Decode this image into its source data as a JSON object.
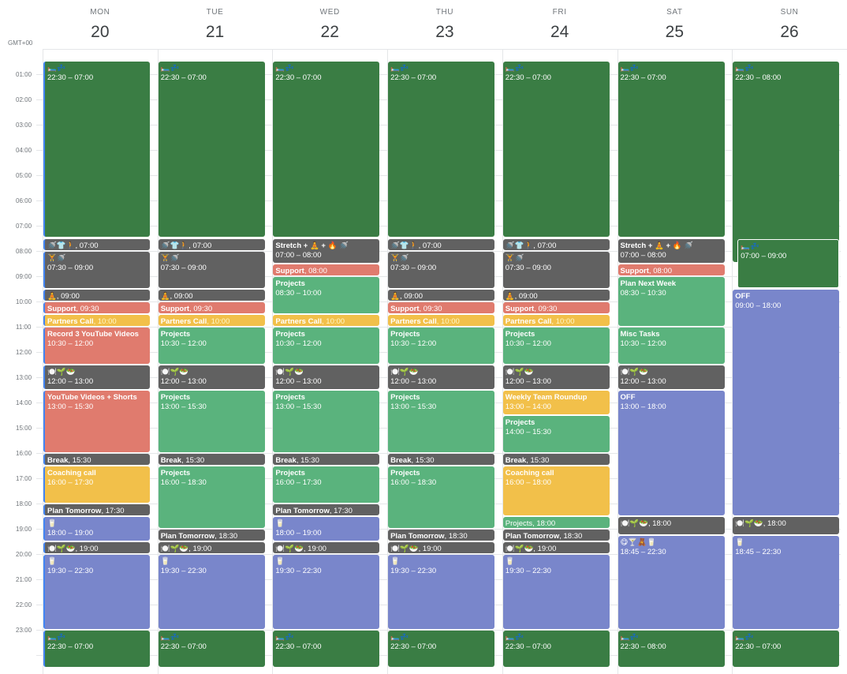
{
  "timezone": "GMT+00",
  "colors": {
    "sleep": "#3a7d44",
    "graphite": "#616161",
    "flamingo": "#e07b6e",
    "banana": "#f2c04a",
    "sage": "#5ab37d",
    "lavender": "#7986cb"
  },
  "days": [
    {
      "dow": "MON",
      "num": "20"
    },
    {
      "dow": "TUE",
      "num": "21"
    },
    {
      "dow": "WED",
      "num": "22"
    },
    {
      "dow": "THU",
      "num": "23"
    },
    {
      "dow": "FRI",
      "num": "24"
    },
    {
      "dow": "SAT",
      "num": "25"
    },
    {
      "dow": "SUN",
      "num": "26"
    }
  ],
  "hours": [
    "01:00",
    "02:00",
    "03:00",
    "04:00",
    "05:00",
    "06:00",
    "07:00",
    "08:00",
    "09:00",
    "10:00",
    "11:00",
    "12:00",
    "13:00",
    "14:00",
    "15:00",
    "16:00",
    "17:00",
    "18:00",
    "19:00",
    "20:00",
    "21:00",
    "22:00",
    "23:00"
  ],
  "events": [
    {
      "day": 0,
      "start": 0,
      "end": 7,
      "color": "sleep",
      "title": "🛏️💤",
      "time": "22:30 – 07:00",
      "two": true
    },
    {
      "day": 0,
      "start": 7,
      "end": 7.5,
      "color": "graphite",
      "title": "🚿👕🚶",
      "time": ", 07:00"
    },
    {
      "day": 0,
      "start": 7.5,
      "end": 9,
      "color": "graphite",
      "title": "🏋️🚿",
      "time": "07:30 – 09:00",
      "two": true
    },
    {
      "day": 0,
      "start": 9,
      "end": 9.5,
      "color": "graphite",
      "title": "🧘",
      "time": ", 09:00"
    },
    {
      "day": 0,
      "start": 9.5,
      "end": 10,
      "color": "flamingo",
      "title": "Support",
      "time": ", 09:30"
    },
    {
      "day": 0,
      "start": 10,
      "end": 10.5,
      "color": "banana",
      "title": "Partners Call",
      "time": ", 10:00",
      "hl": true
    },
    {
      "day": 0,
      "start": 10.5,
      "end": 12,
      "color": "flamingo",
      "title": "Record 3 YouTube Videos",
      "time": "10:30 – 12:00",
      "two": true
    },
    {
      "day": 0,
      "start": 12,
      "end": 13,
      "color": "graphite",
      "title": "🍽️🌱🥗",
      "time": "12:00 – 13:00",
      "two": true
    },
    {
      "day": 0,
      "start": 13,
      "end": 15.5,
      "color": "flamingo",
      "title": "YouTube Videos + Shorts",
      "time": "13:00 – 15:30",
      "two": true
    },
    {
      "day": 0,
      "start": 15.5,
      "end": 16,
      "color": "graphite",
      "title": "Break",
      "time": ", 15:30"
    },
    {
      "day": 0,
      "start": 16,
      "end": 17.5,
      "color": "banana",
      "title": "Coaching call",
      "time": "16:00 – 17:30",
      "two": true
    },
    {
      "day": 0,
      "start": 17.5,
      "end": 18,
      "color": "graphite",
      "title": "Plan Tomorrow",
      "time": ", 17:30"
    },
    {
      "day": 0,
      "start": 18,
      "end": 19,
      "color": "lavender",
      "title": "🥛",
      "time": "18:00 – 19:00",
      "two": true
    },
    {
      "day": 0,
      "start": 19,
      "end": 19.5,
      "color": "graphite",
      "title": "🍽️🌱🥗",
      "time": ", 19:00"
    },
    {
      "day": 0,
      "start": 19.5,
      "end": 22.5,
      "color": "lavender",
      "title": "🥛",
      "time": "19:30 – 22:30",
      "two": true
    },
    {
      "day": 0,
      "start": 22.5,
      "end": 24,
      "color": "sleep",
      "title": "🛏️💤",
      "time": "22:30 – 07:00",
      "two": true
    },
    {
      "day": 1,
      "start": 0,
      "end": 7,
      "color": "sleep",
      "title": "🛏️💤",
      "time": "22:30 – 07:00",
      "two": true
    },
    {
      "day": 1,
      "start": 7,
      "end": 7.5,
      "color": "graphite",
      "title": "🚿👕🚶",
      "time": ", 07:00"
    },
    {
      "day": 1,
      "start": 7.5,
      "end": 9,
      "color": "graphite",
      "title": "🏋️🚿",
      "time": "07:30 – 09:00",
      "two": true
    },
    {
      "day": 1,
      "start": 9,
      "end": 9.5,
      "color": "graphite",
      "title": "🧘",
      "time": ", 09:00"
    },
    {
      "day": 1,
      "start": 9.5,
      "end": 10,
      "color": "flamingo",
      "title": "Support",
      "time": ", 09:30"
    },
    {
      "day": 1,
      "start": 10,
      "end": 10.5,
      "color": "banana",
      "title": "Partners Call",
      "time": ", 10:00",
      "hl": true
    },
    {
      "day": 1,
      "start": 10.5,
      "end": 12,
      "color": "sage",
      "title": "Projects",
      "time": "10:30 – 12:00",
      "two": true
    },
    {
      "day": 1,
      "start": 12,
      "end": 13,
      "color": "graphite",
      "title": "🍽️🌱🥗",
      "time": "12:00 – 13:00",
      "two": true
    },
    {
      "day": 1,
      "start": 13,
      "end": 15.5,
      "color": "sage",
      "title": "Projects",
      "time": "13:00 – 15:30",
      "two": true
    },
    {
      "day": 1,
      "start": 15.5,
      "end": 16,
      "color": "graphite",
      "title": "Break",
      "time": ", 15:30"
    },
    {
      "day": 1,
      "start": 16,
      "end": 18.5,
      "color": "sage",
      "title": "Projects",
      "time": "16:00 – 18:30",
      "two": true
    },
    {
      "day": 1,
      "start": 18.5,
      "end": 19,
      "color": "graphite",
      "title": "Plan Tomorrow",
      "time": ", 18:30"
    },
    {
      "day": 1,
      "start": 19,
      "end": 19.5,
      "color": "graphite",
      "title": "🍽️🌱🥗",
      "time": ", 19:00"
    },
    {
      "day": 1,
      "start": 19.5,
      "end": 22.5,
      "color": "lavender",
      "title": "🥛",
      "time": "19:30 – 22:30",
      "two": true
    },
    {
      "day": 1,
      "start": 22.5,
      "end": 24,
      "color": "sleep",
      "title": "🛏️💤",
      "time": "22:30 – 07:00",
      "two": true
    },
    {
      "day": 2,
      "start": 0,
      "end": 7,
      "color": "sleep",
      "title": "🛏️💤",
      "time": "22:30 – 07:00",
      "two": true
    },
    {
      "day": 2,
      "start": 7,
      "end": 8,
      "color": "graphite",
      "title": "Stretch + 🧘 + 🔥 🚿",
      "time": "07:00 – 08:00",
      "two": true
    },
    {
      "day": 2,
      "start": 8,
      "end": 8.5,
      "color": "flamingo",
      "title": "Support",
      "time": ", 08:00"
    },
    {
      "day": 2,
      "start": 8.5,
      "end": 10,
      "color": "sage",
      "title": "Projects",
      "time": "08:30 – 10:00",
      "two": true
    },
    {
      "day": 2,
      "start": 10,
      "end": 10.5,
      "color": "banana",
      "title": "Partners Call",
      "time": ", 10:00",
      "hl": true
    },
    {
      "day": 2,
      "start": 10.5,
      "end": 12,
      "color": "sage",
      "title": "Projects",
      "time": "10:30 – 12:00",
      "two": true
    },
    {
      "day": 2,
      "start": 12,
      "end": 13,
      "color": "graphite",
      "title": "🍽️🌱🥗",
      "time": "12:00 – 13:00",
      "two": true
    },
    {
      "day": 2,
      "start": 13,
      "end": 15.5,
      "color": "sage",
      "title": "Projects",
      "time": "13:00 – 15:30",
      "two": true
    },
    {
      "day": 2,
      "start": 15.5,
      "end": 16,
      "color": "graphite",
      "title": "Break",
      "time": ", 15:30"
    },
    {
      "day": 2,
      "start": 16,
      "end": 17.5,
      "color": "sage",
      "title": "Projects",
      "time": "16:00 – 17:30",
      "two": true
    },
    {
      "day": 2,
      "start": 17.5,
      "end": 18,
      "color": "graphite",
      "title": "Plan Tomorrow",
      "time": ", 17:30"
    },
    {
      "day": 2,
      "start": 18,
      "end": 19,
      "color": "lavender",
      "title": "🥛",
      "time": "18:00 – 19:00",
      "two": true
    },
    {
      "day": 2,
      "start": 19,
      "end": 19.5,
      "color": "graphite",
      "title": "🍽️🌱🥗",
      "time": ", 19:00"
    },
    {
      "day": 2,
      "start": 19.5,
      "end": 22.5,
      "color": "lavender",
      "title": "🥛",
      "time": "19:30 – 22:30",
      "two": true
    },
    {
      "day": 2,
      "start": 22.5,
      "end": 24,
      "color": "sleep",
      "title": "🛏️💤",
      "time": "22:30 – 07:00",
      "two": true
    },
    {
      "day": 3,
      "start": 0,
      "end": 7,
      "color": "sleep",
      "title": "🛏️💤",
      "time": "22:30 – 07:00",
      "two": true
    },
    {
      "day": 3,
      "start": 7,
      "end": 7.5,
      "color": "graphite",
      "title": "🚿👕🚶",
      "time": ", 07:00"
    },
    {
      "day": 3,
      "start": 7.5,
      "end": 9,
      "color": "graphite",
      "title": "🏋️🚿",
      "time": "07:30 – 09:00",
      "two": true
    },
    {
      "day": 3,
      "start": 9,
      "end": 9.5,
      "color": "graphite",
      "title": "🧘",
      "time": ", 09:00"
    },
    {
      "day": 3,
      "start": 9.5,
      "end": 10,
      "color": "flamingo",
      "title": "Support",
      "time": ", 09:30"
    },
    {
      "day": 3,
      "start": 10,
      "end": 10.5,
      "color": "banana",
      "title": "Partners Call",
      "time": ", 10:00",
      "hl": true
    },
    {
      "day": 3,
      "start": 10.5,
      "end": 12,
      "color": "sage",
      "title": "Projects",
      "time": "10:30 – 12:00",
      "two": true
    },
    {
      "day": 3,
      "start": 12,
      "end": 13,
      "color": "graphite",
      "title": "🍽️🌱🥗",
      "time": "12:00 – 13:00",
      "two": true
    },
    {
      "day": 3,
      "start": 13,
      "end": 15.5,
      "color": "sage",
      "title": "Projects",
      "time": "13:00 – 15:30",
      "two": true
    },
    {
      "day": 3,
      "start": 15.5,
      "end": 16,
      "color": "graphite",
      "title": "Break",
      "time": ", 15:30"
    },
    {
      "day": 3,
      "start": 16,
      "end": 18.5,
      "color": "sage",
      "title": "Projects",
      "time": "16:00 – 18:30",
      "two": true
    },
    {
      "day": 3,
      "start": 18.5,
      "end": 19,
      "color": "graphite",
      "title": "Plan Tomorrow",
      "time": ", 18:30"
    },
    {
      "day": 3,
      "start": 19,
      "end": 19.5,
      "color": "graphite",
      "title": "🍽️🌱🥗",
      "time": ", 19:00"
    },
    {
      "day": 3,
      "start": 19.5,
      "end": 22.5,
      "color": "lavender",
      "title": "🥛",
      "time": "19:30 – 22:30",
      "two": true
    },
    {
      "day": 3,
      "start": 22.5,
      "end": 24,
      "color": "sleep",
      "title": "🛏️💤",
      "time": "22:30 – 07:00",
      "two": true
    },
    {
      "day": 4,
      "start": 0,
      "end": 7,
      "color": "sleep",
      "title": "🛏️💤",
      "time": "22:30 – 07:00",
      "two": true
    },
    {
      "day": 4,
      "start": 7,
      "end": 7.5,
      "color": "graphite",
      "title": "🚿👕🚶",
      "time": ", 07:00"
    },
    {
      "day": 4,
      "start": 7.5,
      "end": 9,
      "color": "graphite",
      "title": "🏋️🚿",
      "time": "07:30 – 09:00",
      "two": true
    },
    {
      "day": 4,
      "start": 9,
      "end": 9.5,
      "color": "graphite",
      "title": "🧘",
      "time": ", 09:00"
    },
    {
      "day": 4,
      "start": 9.5,
      "end": 10,
      "color": "flamingo",
      "title": "Support",
      "time": ", 09:30"
    },
    {
      "day": 4,
      "start": 10,
      "end": 10.5,
      "color": "banana",
      "title": "Partners Call",
      "time": ", 10:00",
      "hl": true
    },
    {
      "day": 4,
      "start": 10.5,
      "end": 12,
      "color": "sage",
      "title": "Projects",
      "time": "10:30 – 12:00",
      "two": true
    },
    {
      "day": 4,
      "start": 12,
      "end": 13,
      "color": "graphite",
      "title": "🍽️🌱🥗",
      "time": "12:00 – 13:00",
      "two": true
    },
    {
      "day": 4,
      "start": 13,
      "end": 14,
      "color": "banana",
      "title": "Weekly Team Roundup",
      "time": "13:00 – 14:00",
      "two": true
    },
    {
      "day": 4,
      "start": 14,
      "end": 15.5,
      "color": "sage",
      "title": "Projects",
      "time": "14:00 – 15:30",
      "two": true
    },
    {
      "day": 4,
      "start": 15.5,
      "end": 16,
      "color": "graphite",
      "title": "Break",
      "time": ", 15:30"
    },
    {
      "day": 4,
      "start": 16,
      "end": 18,
      "color": "banana",
      "title": "Coaching call",
      "time": "16:00 – 18:00",
      "two": true
    },
    {
      "day": 4,
      "start": 18,
      "end": 18.5,
      "color": "sage",
      "title": "Projects",
      "time": ", 18:00",
      "plain": true
    },
    {
      "day": 4,
      "start": 18.5,
      "end": 19,
      "color": "graphite",
      "title": "Plan Tomorrow",
      "time": ", 18:30"
    },
    {
      "day": 4,
      "start": 19,
      "end": 19.5,
      "color": "graphite",
      "title": "🍽️🌱🥗",
      "time": ", 19:00"
    },
    {
      "day": 4,
      "start": 19.5,
      "end": 22.5,
      "color": "lavender",
      "title": "🥛",
      "time": "19:30 – 22:30",
      "two": true
    },
    {
      "day": 4,
      "start": 22.5,
      "end": 24,
      "color": "sleep",
      "title": "🛏️💤",
      "time": "22:30 – 07:00",
      "two": true
    },
    {
      "day": 5,
      "start": 0,
      "end": 7,
      "color": "sleep",
      "title": "🛏️💤",
      "time": "22:30 – 07:00",
      "two": true
    },
    {
      "day": 5,
      "start": 7,
      "end": 8,
      "color": "graphite",
      "title": "Stretch + 🧘 + 🔥 🚿",
      "time": "07:00 – 08:00",
      "two": true
    },
    {
      "day": 5,
      "start": 8,
      "end": 8.5,
      "color": "flamingo",
      "title": "Support",
      "time": ", 08:00"
    },
    {
      "day": 5,
      "start": 8.5,
      "end": 10.5,
      "color": "sage",
      "title": "Plan Next Week",
      "time": "08:30 – 10:30",
      "two": true
    },
    {
      "day": 5,
      "start": 10.5,
      "end": 12,
      "color": "sage",
      "title": "Misc Tasks",
      "time": "10:30 – 12:00",
      "two": true
    },
    {
      "day": 5,
      "start": 12,
      "end": 13,
      "color": "graphite",
      "title": "🍽️🌱🥗",
      "time": "12:00 – 13:00",
      "two": true
    },
    {
      "day": 5,
      "start": 13,
      "end": 18,
      "color": "lavender",
      "title": "OFF",
      "time": "13:00 – 18:00",
      "two": true
    },
    {
      "day": 5,
      "start": 18,
      "end": 18.75,
      "color": "graphite",
      "title": "🍽️🌱🥗",
      "time": ", 18:00"
    },
    {
      "day": 5,
      "start": 18.75,
      "end": 22.5,
      "color": "lavender",
      "title": "😋🍸🧸🥛",
      "time": "18:45 – 22:30",
      "two": true
    },
    {
      "day": 5,
      "start": 22.5,
      "end": 24,
      "color": "sleep",
      "title": "🛏️💤",
      "time": "22:30 – 08:00",
      "two": true
    },
    {
      "day": 6,
      "start": 0,
      "end": 8,
      "color": "sleep",
      "title": "🛏️💤",
      "time": "22:30 – 08:00",
      "two": true,
      "narrow": true
    },
    {
      "day": 6,
      "start": 7,
      "end": 9,
      "color": "sleep",
      "title": "🛏️💤",
      "time": "07:00 – 09:00",
      "two": true,
      "inset": true
    },
    {
      "day": 6,
      "start": 9,
      "end": 18,
      "color": "lavender",
      "title": "OFF",
      "time": "09:00 – 18:00",
      "two": true
    },
    {
      "day": 6,
      "start": 18,
      "end": 18.75,
      "color": "graphite",
      "title": "🍽️🌱🥗",
      "time": ", 18:00"
    },
    {
      "day": 6,
      "start": 18.75,
      "end": 22.5,
      "color": "lavender",
      "title": "🥛",
      "time": "18:45 – 22:30",
      "two": true
    },
    {
      "day": 6,
      "start": 22.5,
      "end": 24,
      "color": "sleep",
      "title": "🛏️💤",
      "time": "22:30 – 07:00",
      "two": true
    }
  ]
}
